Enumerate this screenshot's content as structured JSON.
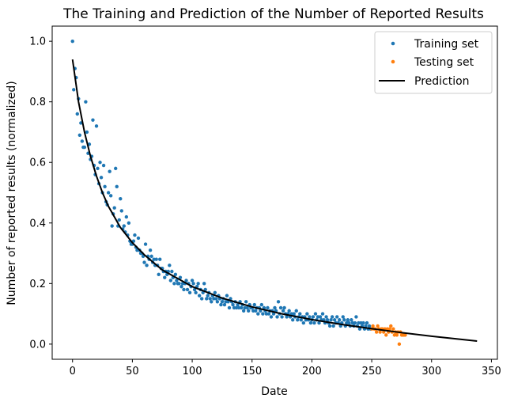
{
  "chart_data": {
    "type": "scatter",
    "title": "The Training and Prediction of the Number of Reported Results",
    "xlabel": "Date",
    "ylabel": "Number of reported results (normalized)",
    "xlim": [
      -17,
      355
    ],
    "ylim": [
      -0.05,
      1.05
    ],
    "xticks": [
      0,
      50,
      100,
      150,
      200,
      250,
      300,
      350
    ],
    "yticks": [
      0.0,
      0.2,
      0.4,
      0.6,
      0.8,
      1.0
    ],
    "grid": false,
    "legend_position": "top-right",
    "series": [
      {
        "name": "Training set",
        "kind": "scatter",
        "color": "#1f77b4",
        "points": [
          [
            0,
            1.0
          ],
          [
            1,
            0.84
          ],
          [
            2,
            0.91
          ],
          [
            3,
            0.88
          ],
          [
            4,
            0.76
          ],
          [
            5,
            0.81
          ],
          [
            6,
            0.69
          ],
          [
            7,
            0.73
          ],
          [
            8,
            0.67
          ],
          [
            9,
            0.65
          ],
          [
            10,
            0.65
          ],
          [
            11,
            0.8
          ],
          [
            12,
            0.7
          ],
          [
            13,
            0.63
          ],
          [
            14,
            0.66
          ],
          [
            15,
            0.61
          ],
          [
            16,
            0.62
          ],
          [
            17,
            0.74
          ],
          [
            18,
            0.59
          ],
          [
            19,
            0.56
          ],
          [
            20,
            0.72
          ],
          [
            21,
            0.58
          ],
          [
            22,
            0.53
          ],
          [
            23,
            0.6
          ],
          [
            24,
            0.55
          ],
          [
            25,
            0.5
          ],
          [
            26,
            0.59
          ],
          [
            27,
            0.52
          ],
          [
            28,
            0.47
          ],
          [
            29,
            0.46
          ],
          [
            30,
            0.5
          ],
          [
            31,
            0.57
          ],
          [
            32,
            0.49
          ],
          [
            33,
            0.39
          ],
          [
            34,
            0.43
          ],
          [
            35,
            0.45
          ],
          [
            36,
            0.58
          ],
          [
            37,
            0.52
          ],
          [
            38,
            0.39
          ],
          [
            39,
            0.41
          ],
          [
            40,
            0.48
          ],
          [
            41,
            0.44
          ],
          [
            42,
            0.38
          ],
          [
            43,
            0.39
          ],
          [
            44,
            0.37
          ],
          [
            45,
            0.42
          ],
          [
            46,
            0.36
          ],
          [
            47,
            0.4
          ],
          [
            48,
            0.34
          ],
          [
            49,
            0.33
          ],
          [
            50,
            0.33
          ],
          [
            51,
            0.34
          ],
          [
            52,
            0.36
          ],
          [
            53,
            0.32
          ],
          [
            54,
            0.31
          ],
          [
            55,
            0.35
          ],
          [
            56,
            0.31
          ],
          [
            57,
            0.3
          ],
          [
            58,
            0.3
          ],
          [
            59,
            0.29
          ],
          [
            60,
            0.27
          ],
          [
            61,
            0.33
          ],
          [
            62,
            0.26
          ],
          [
            63,
            0.29
          ],
          [
            64,
            0.28
          ],
          [
            65,
            0.31
          ],
          [
            66,
            0.29
          ],
          [
            67,
            0.27
          ],
          [
            68,
            0.28
          ],
          [
            69,
            0.26
          ],
          [
            70,
            0.28
          ],
          [
            71,
            0.26
          ],
          [
            72,
            0.23
          ],
          [
            73,
            0.28
          ],
          [
            74,
            0.25
          ],
          [
            75,
            0.25
          ],
          [
            76,
            0.24
          ],
          [
            77,
            0.22
          ],
          [
            78,
            0.24
          ],
          [
            79,
            0.23
          ],
          [
            80,
            0.24
          ],
          [
            81,
            0.26
          ],
          [
            82,
            0.21
          ],
          [
            83,
            0.24
          ],
          [
            84,
            0.22
          ],
          [
            85,
            0.2
          ],
          [
            86,
            0.23
          ],
          [
            87,
            0.21
          ],
          [
            88,
            0.2
          ],
          [
            89,
            0.2
          ],
          [
            90,
            0.22
          ],
          [
            91,
            0.19
          ],
          [
            92,
            0.2
          ],
          [
            93,
            0.18
          ],
          [
            94,
            0.2
          ],
          [
            95,
            0.21
          ],
          [
            96,
            0.18
          ],
          [
            97,
            0.2
          ],
          [
            98,
            0.17
          ],
          [
            99,
            0.19
          ],
          [
            100,
            0.21
          ],
          [
            101,
            0.2
          ],
          [
            102,
            0.18
          ],
          [
            103,
            0.17
          ],
          [
            104,
            0.19
          ],
          [
            105,
            0.2
          ],
          [
            106,
            0.16
          ],
          [
            107,
            0.18
          ],
          [
            108,
            0.15
          ],
          [
            109,
            0.17
          ],
          [
            110,
            0.2
          ],
          [
            111,
            0.18
          ],
          [
            112,
            0.15
          ],
          [
            113,
            0.16
          ],
          [
            114,
            0.17
          ],
          [
            115,
            0.15
          ],
          [
            116,
            0.14
          ],
          [
            117,
            0.16
          ],
          [
            118,
            0.15
          ],
          [
            119,
            0.17
          ],
          [
            120,
            0.15
          ],
          [
            121,
            0.14
          ],
          [
            122,
            0.16
          ],
          [
            123,
            0.15
          ],
          [
            124,
            0.13
          ],
          [
            125,
            0.14
          ],
          [
            126,
            0.15
          ],
          [
            127,
            0.13
          ],
          [
            128,
            0.14
          ],
          [
            129,
            0.16
          ],
          [
            130,
            0.14
          ],
          [
            131,
            0.12
          ],
          [
            132,
            0.15
          ],
          [
            133,
            0.14
          ],
          [
            134,
            0.13
          ],
          [
            135,
            0.12
          ],
          [
            136,
            0.14
          ],
          [
            137,
            0.12
          ],
          [
            138,
            0.13
          ],
          [
            139,
            0.12
          ],
          [
            140,
            0.14
          ],
          [
            141,
            0.12
          ],
          [
            142,
            0.13
          ],
          [
            143,
            0.11
          ],
          [
            144,
            0.12
          ],
          [
            145,
            0.14
          ],
          [
            146,
            0.12
          ],
          [
            147,
            0.11
          ],
          [
            148,
            0.13
          ],
          [
            149,
            0.12
          ],
          [
            150,
            0.12
          ],
          [
            151,
            0.11
          ],
          [
            152,
            0.13
          ],
          [
            153,
            0.11
          ],
          [
            154,
            0.12
          ],
          [
            155,
            0.1
          ],
          [
            156,
            0.12
          ],
          [
            157,
            0.11
          ],
          [
            158,
            0.13
          ],
          [
            159,
            0.1
          ],
          [
            160,
            0.12
          ],
          [
            161,
            0.11
          ],
          [
            162,
            0.1
          ],
          [
            163,
            0.12
          ],
          [
            164,
            0.1
          ],
          [
            165,
            0.11
          ],
          [
            166,
            0.09
          ],
          [
            167,
            0.11
          ],
          [
            168,
            0.1
          ],
          [
            169,
            0.12
          ],
          [
            170,
            0.11
          ],
          [
            171,
            0.09
          ],
          [
            172,
            0.14
          ],
          [
            173,
            0.1
          ],
          [
            174,
            0.12
          ],
          [
            175,
            0.09
          ],
          [
            176,
            0.11
          ],
          [
            177,
            0.12
          ],
          [
            178,
            0.1
          ],
          [
            179,
            0.09
          ],
          [
            180,
            0.1
          ],
          [
            181,
            0.11
          ],
          [
            182,
            0.09
          ],
          [
            183,
            0.1
          ],
          [
            184,
            0.08
          ],
          [
            185,
            0.1
          ],
          [
            186,
            0.09
          ],
          [
            187,
            0.11
          ],
          [
            188,
            0.08
          ],
          [
            189,
            0.09
          ],
          [
            190,
            0.1
          ],
          [
            191,
            0.08
          ],
          [
            192,
            0.09
          ],
          [
            193,
            0.07
          ],
          [
            194,
            0.09
          ],
          [
            195,
            0.08
          ],
          [
            196,
            0.1
          ],
          [
            197,
            0.08
          ],
          [
            198,
            0.09
          ],
          [
            199,
            0.07
          ],
          [
            200,
            0.08
          ],
          [
            201,
            0.09
          ],
          [
            202,
            0.07
          ],
          [
            203,
            0.1
          ],
          [
            204,
            0.08
          ],
          [
            205,
            0.09
          ],
          [
            206,
            0.07
          ],
          [
            207,
            0.09
          ],
          [
            208,
            0.08
          ],
          [
            209,
            0.1
          ],
          [
            210,
            0.08
          ],
          [
            211,
            0.07
          ],
          [
            212,
            0.09
          ],
          [
            213,
            0.08
          ],
          [
            214,
            0.07
          ],
          [
            215,
            0.06
          ],
          [
            216,
            0.08
          ],
          [
            217,
            0.09
          ],
          [
            218,
            0.06
          ],
          [
            219,
            0.08
          ],
          [
            220,
            0.07
          ],
          [
            221,
            0.09
          ],
          [
            222,
            0.07
          ],
          [
            223,
            0.08
          ],
          [
            224,
            0.06
          ],
          [
            225,
            0.07
          ],
          [
            226,
            0.09
          ],
          [
            227,
            0.08
          ],
          [
            228,
            0.06
          ],
          [
            229,
            0.07
          ],
          [
            230,
            0.08
          ],
          [
            231,
            0.07
          ],
          [
            232,
            0.06
          ],
          [
            233,
            0.08
          ],
          [
            234,
            0.07
          ],
          [
            235,
            0.06
          ],
          [
            236,
            0.07
          ],
          [
            237,
            0.09
          ],
          [
            238,
            0.06
          ],
          [
            239,
            0.07
          ],
          [
            240,
            0.05
          ],
          [
            241,
            0.07
          ],
          [
            242,
            0.06
          ],
          [
            243,
            0.07
          ],
          [
            244,
            0.05
          ],
          [
            245,
            0.06
          ],
          [
            246,
            0.07
          ],
          [
            247,
            0.05
          ],
          [
            248,
            0.06
          ],
          [
            249,
            0.05
          ]
        ]
      },
      {
        "name": "Testing set",
        "kind": "scatter",
        "color": "#ff7f0e",
        "points": [
          [
            250,
            0.05
          ],
          [
            251,
            0.06
          ],
          [
            252,
            0.05
          ],
          [
            253,
            0.05
          ],
          [
            254,
            0.04
          ],
          [
            255,
            0.06
          ],
          [
            256,
            0.05
          ],
          [
            257,
            0.04
          ],
          [
            258,
            0.05
          ],
          [
            259,
            0.05
          ],
          [
            260,
            0.04
          ],
          [
            261,
            0.05
          ],
          [
            262,
            0.03
          ],
          [
            263,
            0.05
          ],
          [
            264,
            0.04
          ],
          [
            265,
            0.05
          ],
          [
            266,
            0.06
          ],
          [
            267,
            0.04
          ],
          [
            268,
            0.05
          ],
          [
            269,
            0.03
          ],
          [
            270,
            0.04
          ],
          [
            271,
            0.03
          ],
          [
            272,
            0.04
          ],
          [
            273,
            0.0
          ],
          [
            274,
            0.04
          ],
          [
            275,
            0.03
          ],
          [
            276,
            0.03
          ],
          [
            277,
            0.03
          ],
          [
            278,
            0.03
          ]
        ]
      },
      {
        "name": "Prediction",
        "kind": "line",
        "color": "#000000",
        "x": [
          0,
          5,
          10,
          15,
          20,
          25,
          30,
          40,
          50,
          60,
          75,
          100,
          125,
          150,
          175,
          200,
          225,
          250,
          275,
          300,
          338
        ],
        "y": [
          0.94,
          0.8,
          0.7,
          0.62,
          0.555,
          0.5,
          0.455,
          0.385,
          0.335,
          0.295,
          0.245,
          0.19,
          0.152,
          0.123,
          0.1,
          0.081,
          0.065,
          0.051,
          0.038,
          0.026,
          0.01
        ]
      }
    ]
  }
}
